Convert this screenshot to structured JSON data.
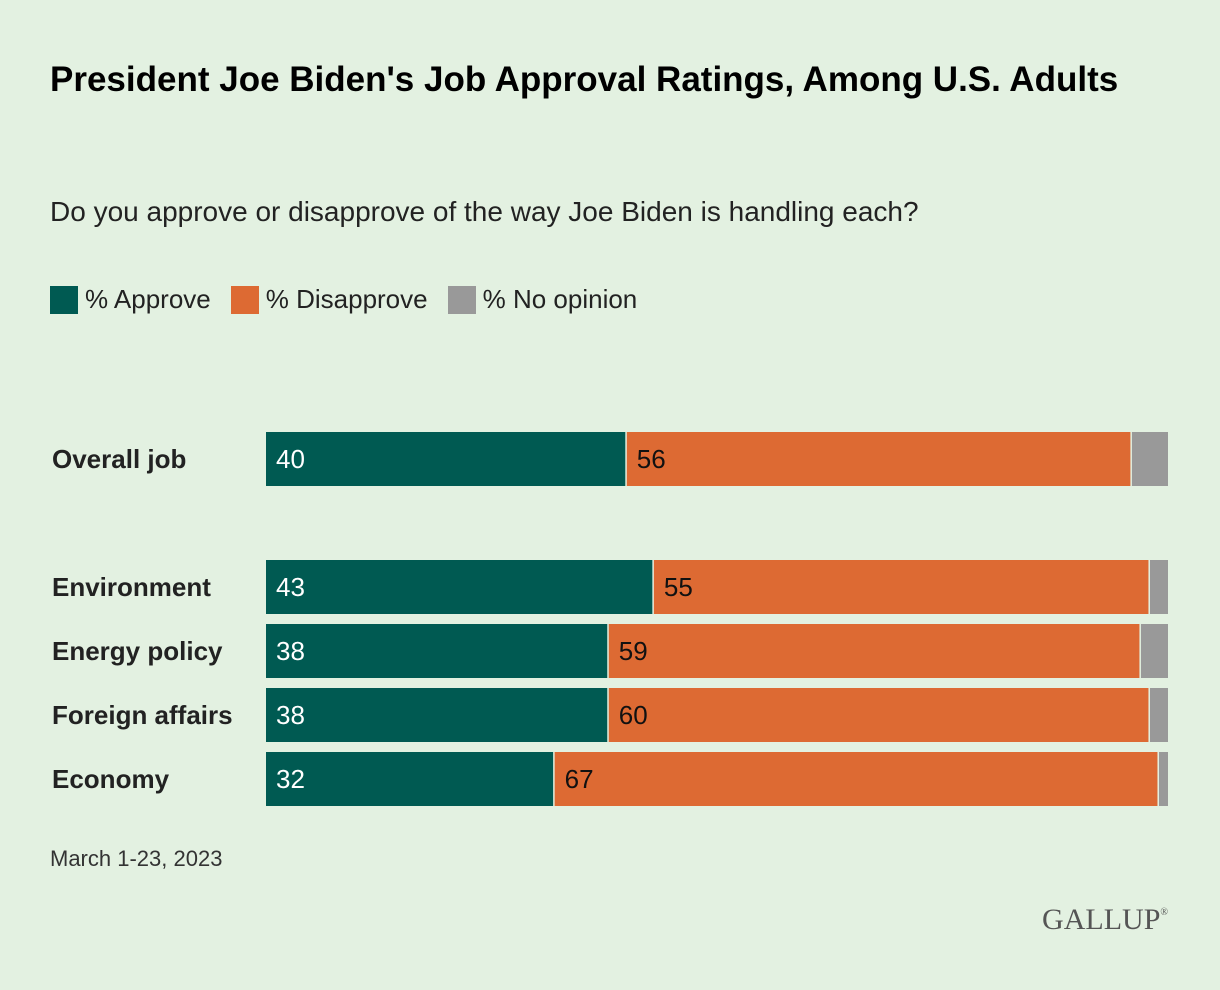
{
  "title": "President Joe Biden's Job Approval Ratings, Among U.S. Adults",
  "subtitle": "Do you approve or disapprove of the way Joe Biden is handling each?",
  "legend": [
    {
      "label": "% Approve",
      "color": "#005a52"
    },
    {
      "label": "% Disapprove",
      "color": "#dd6a33"
    },
    {
      "label": "% No opinion",
      "color": "#999999"
    }
  ],
  "footnote": "March 1-23, 2023",
  "brand": "GALLUP",
  "brand_mark": "®",
  "chart_data": {
    "type": "bar",
    "orientation": "horizontal",
    "stacked": true,
    "categories": [
      "Overall job",
      "Environment",
      "Energy policy",
      "Foreign affairs",
      "Economy"
    ],
    "series": [
      {
        "name": "% Approve",
        "color": "#005a52",
        "values": [
          40,
          43,
          38,
          38,
          32
        ]
      },
      {
        "name": "% Disapprove",
        "color": "#dd6a33",
        "values": [
          56,
          55,
          59,
          60,
          67
        ]
      },
      {
        "name": "% No opinion",
        "color": "#999999",
        "values": [
          4,
          2,
          3,
          2,
          1
        ]
      }
    ],
    "data_labels": [
      "% Approve",
      "% Disapprove"
    ],
    "xlim": [
      0,
      100
    ],
    "grid": false,
    "legend_position": "top-left"
  }
}
